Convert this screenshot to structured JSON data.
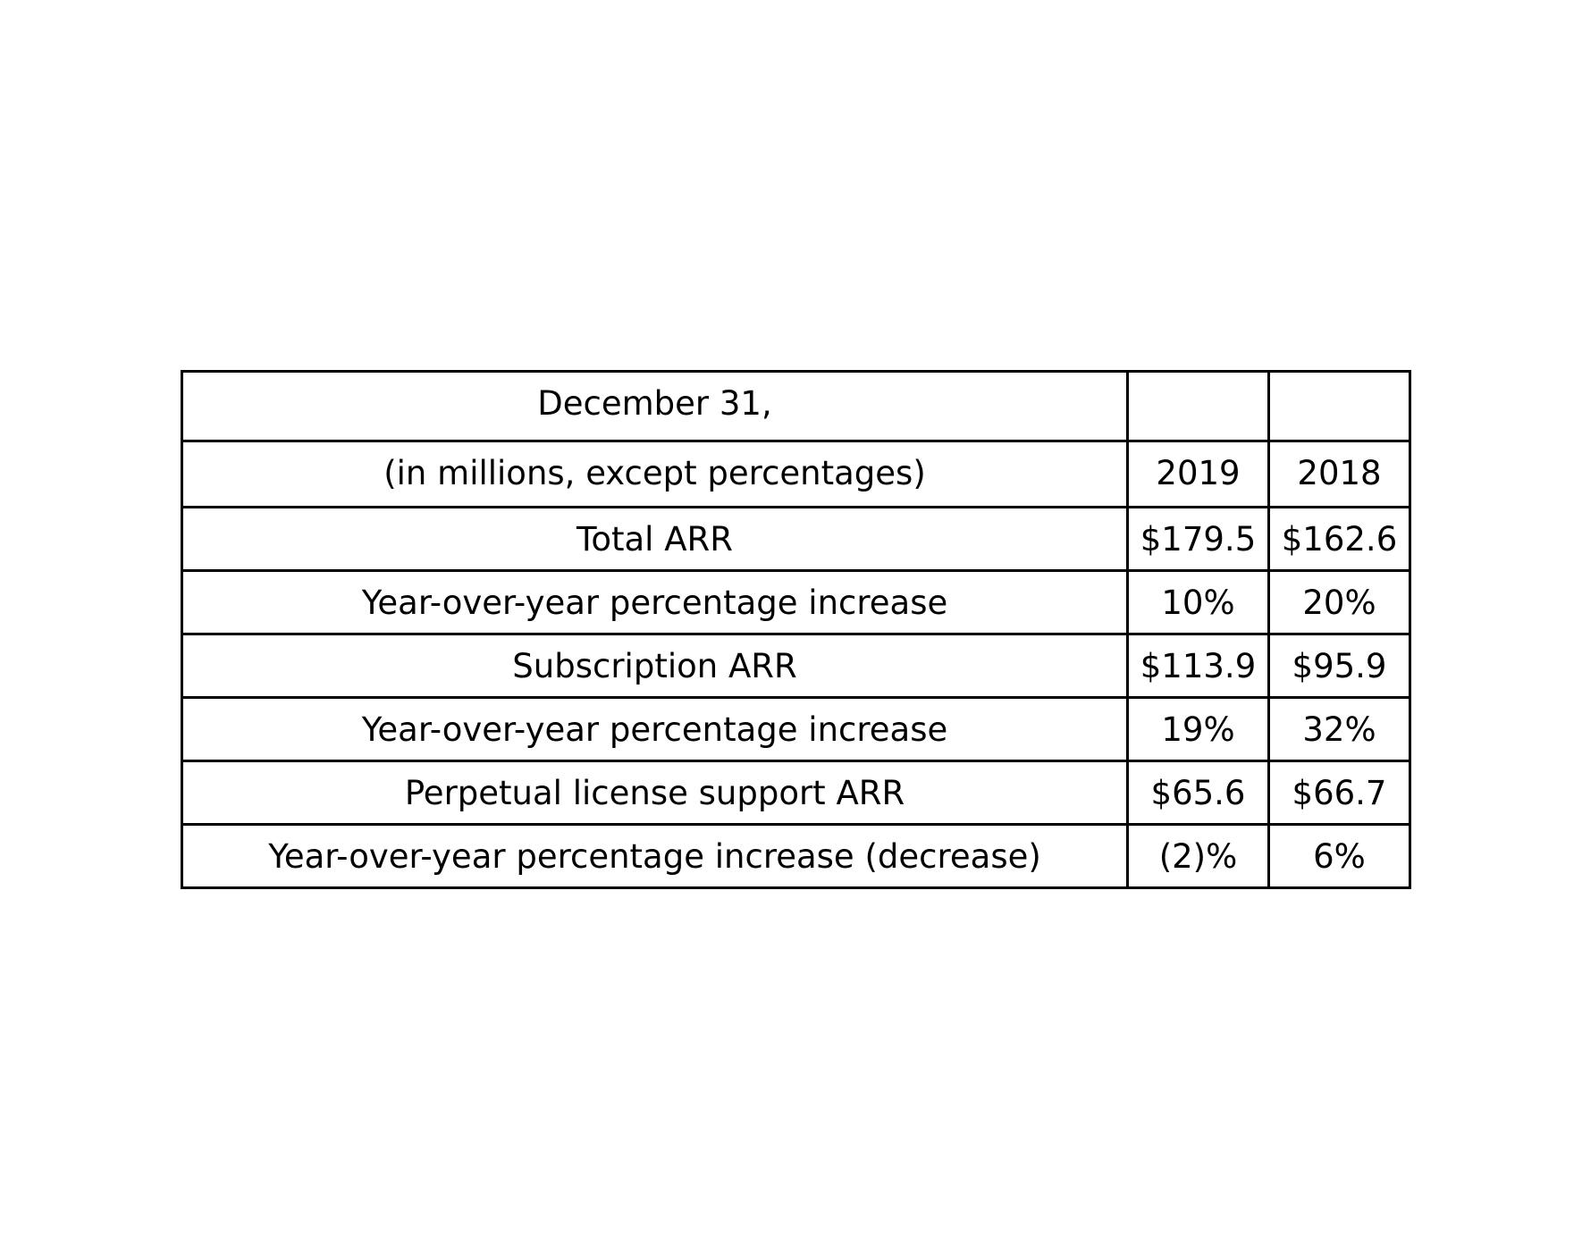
{
  "chart_data": {
    "type": "table",
    "header_rows": [
      [
        "December 31,",
        "",
        ""
      ],
      [
        "(in millions, except percentages)",
        "2019",
        "2018"
      ]
    ],
    "rows": [
      [
        "Total ARR",
        "$179.5",
        "$162.6"
      ],
      [
        "Year-over-year percentage increase",
        "10%",
        "20%"
      ],
      [
        "Subscription ARR",
        "$113.9",
        "$95.9"
      ],
      [
        "Year-over-year percentage increase",
        "19%",
        "32%"
      ],
      [
        "Perpetual license support ARR",
        "$65.6",
        "$66.7"
      ],
      [
        "Year-over-year percentage increase (decrease)",
        "(2)%",
        "6%"
      ]
    ],
    "columns": [
      "2019",
      "2018"
    ],
    "values": {
      "Total ARR": [
        179.5,
        162.6
      ],
      "Subscription ARR": [
        113.9,
        95.9
      ],
      "Perpetual license support ARR": [
        65.6,
        66.7
      ]
    }
  }
}
